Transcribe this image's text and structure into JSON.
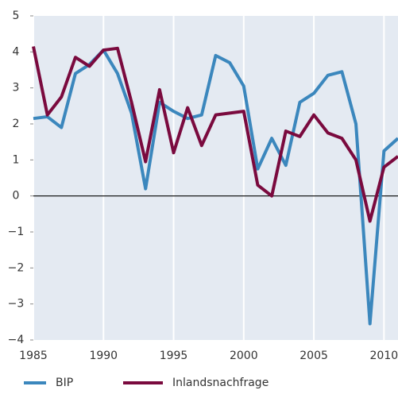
{
  "chart_data": {
    "type": "line",
    "x": [
      1985,
      1986,
      1987,
      1988,
      1989,
      1990,
      1991,
      1992,
      1993,
      1994,
      1995,
      1996,
      1997,
      1998,
      1999,
      2000,
      2001,
      2002,
      2003,
      2004,
      2005,
      2006,
      2007,
      2008,
      2009,
      2010,
      2011
    ],
    "series": [
      {
        "name": "BIP",
        "color": "#3b87bd",
        "values": [
          2.15,
          2.2,
          1.9,
          3.4,
          3.65,
          4.05,
          3.4,
          2.3,
          0.2,
          2.6,
          2.35,
          2.15,
          2.25,
          3.9,
          3.7,
          3.05,
          0.75,
          1.6,
          0.85,
          2.6,
          2.85,
          3.35,
          3.45,
          2.0,
          -3.55,
          1.25,
          1.6
        ]
      },
      {
        "name": "Inlandsnachfrage",
        "color": "#7a0a3e",
        "values": [
          4.15,
          2.25,
          2.75,
          3.85,
          3.6,
          4.05,
          4.1,
          2.6,
          0.95,
          2.95,
          1.2,
          2.45,
          1.4,
          2.25,
          2.3,
          2.35,
          0.3,
          0.0,
          1.8,
          1.65,
          2.25,
          1.75,
          1.6,
          1.0,
          -0.7,
          0.8,
          1.1
        ]
      }
    ],
    "xlim": [
      1985,
      2011
    ],
    "xticks": [
      1985,
      1990,
      1995,
      2000,
      2005,
      2010
    ],
    "ylim": [
      -4,
      5
    ],
    "yticks": [
      {
        "value": -4,
        "label": "−4"
      },
      {
        "value": -3,
        "label": "−3"
      },
      {
        "value": -2,
        "label": "−2"
      },
      {
        "value": -1,
        "label": "−1"
      },
      0,
      1,
      2,
      3,
      4,
      5
    ],
    "grid": true,
    "legend": "bottom"
  }
}
